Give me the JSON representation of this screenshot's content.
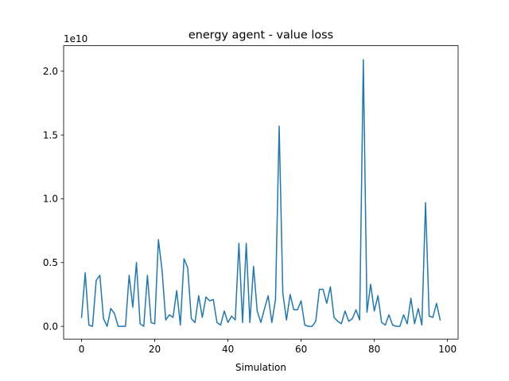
{
  "chart_data": {
    "type": "line",
    "title": "energy agent - value loss",
    "xlabel": "Simulation",
    "ylabel": "",
    "offset_label": "1e10",
    "xlim": [
      -4.9,
      102.9
    ],
    "ylim": [
      -0.1,
      2.2
    ],
    "x_ticks": [
      0,
      20,
      40,
      60,
      80,
      100
    ],
    "x_tick_labels": [
      "0",
      "20",
      "40",
      "60",
      "80",
      "100"
    ],
    "y_ticks": [
      0.0,
      0.5,
      1.0,
      1.5,
      2.0
    ],
    "y_tick_labels": [
      "0.0",
      "0.5",
      "1.0",
      "1.5",
      "2.0"
    ],
    "grid": false,
    "series": [
      {
        "color": "#1f77b4",
        "x": [
          0,
          1,
          2,
          3,
          4,
          5,
          6,
          7,
          8,
          9,
          10,
          11,
          12,
          13,
          14,
          15,
          16,
          17,
          18,
          19,
          20,
          21,
          22,
          23,
          24,
          25,
          26,
          27,
          28,
          29,
          30,
          31,
          32,
          33,
          34,
          35,
          36,
          37,
          38,
          39,
          40,
          41,
          42,
          43,
          44,
          45,
          46,
          47,
          48,
          49,
          50,
          51,
          52,
          53,
          54,
          55,
          56,
          57,
          58,
          59,
          60,
          61,
          62,
          63,
          64,
          65,
          66,
          67,
          68,
          69,
          70,
          71,
          72,
          73,
          74,
          75,
          76,
          77,
          78,
          79,
          80,
          81,
          82,
          83,
          84,
          85,
          86,
          87,
          88,
          89,
          90,
          91,
          92,
          93,
          94,
          95,
          96,
          97,
          98
        ],
        "values": [
          0.07,
          0.42,
          0.01,
          0.0,
          0.36,
          0.4,
          0.06,
          0.0,
          0.14,
          0.1,
          0.0,
          0.0,
          0.0,
          0.4,
          0.15,
          0.5,
          0.02,
          0.0,
          0.4,
          0.03,
          0.02,
          0.68,
          0.44,
          0.05,
          0.09,
          0.07,
          0.28,
          0.01,
          0.53,
          0.46,
          0.06,
          0.03,
          0.24,
          0.07,
          0.23,
          0.2,
          0.21,
          0.03,
          0.01,
          0.12,
          0.03,
          0.08,
          0.05,
          0.65,
          0.03,
          0.65,
          0.03,
          0.47,
          0.12,
          0.03,
          0.14,
          0.24,
          0.03,
          0.21,
          1.57,
          0.26,
          0.05,
          0.25,
          0.13,
          0.13,
          0.2,
          0.01,
          0.0,
          0.0,
          0.04,
          0.29,
          0.29,
          0.18,
          0.31,
          0.07,
          0.04,
          0.02,
          0.12,
          0.04,
          0.06,
          0.13,
          0.05,
          2.09,
          0.11,
          0.33,
          0.12,
          0.24,
          0.03,
          0.01,
          0.09,
          0.01,
          0.0,
          0.0,
          0.09,
          0.02,
          0.22,
          0.02,
          0.14,
          0.01,
          0.97,
          0.08,
          0.07,
          0.18,
          0.05
        ]
      }
    ]
  }
}
